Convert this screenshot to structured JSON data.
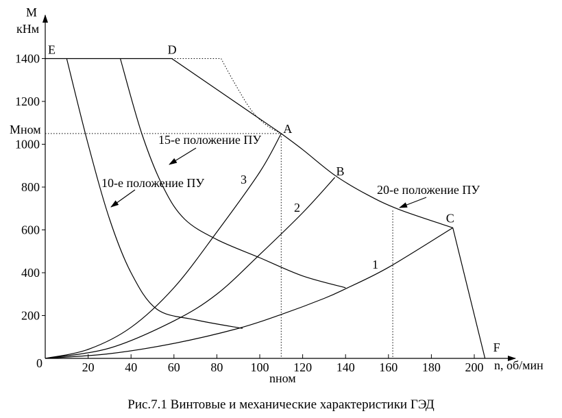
{
  "chart_data": {
    "type": "line",
    "title": "",
    "xlabel": "n, об/мин",
    "ylabel": "М\nкНм",
    "xlim": [
      0,
      220
    ],
    "ylim": [
      0,
      1550
    ],
    "x_ticks": [
      20,
      40,
      60,
      80,
      100,
      120,
      140,
      160,
      180,
      200
    ],
    "y_ticks": [
      200,
      400,
      600,
      800,
      1000,
      1200,
      1400
    ],
    "origin_label": "0",
    "grid": false,
    "series": [
      {
        "name": "1",
        "role": "propeller",
        "points": [
          [
            0,
            0
          ],
          [
            30,
            22
          ],
          [
            60,
            70
          ],
          [
            90,
            140
          ],
          [
            110,
            205
          ],
          [
            130,
            280
          ],
          [
            140,
            325
          ],
          [
            160,
            425
          ],
          [
            190,
            610
          ]
        ]
      },
      {
        "name": "2",
        "role": "propeller",
        "points": [
          [
            0,
            0
          ],
          [
            30,
            48
          ],
          [
            60,
            175
          ],
          [
            80,
            300
          ],
          [
            100,
            485
          ],
          [
            120,
            680
          ],
          [
            135,
            845
          ]
        ]
      },
      {
        "name": "3",
        "role": "propeller",
        "points": [
          [
            0,
            0
          ],
          [
            20,
            42
          ],
          [
            40,
            145
          ],
          [
            60,
            330
          ],
          [
            80,
            590
          ],
          [
            100,
            870
          ],
          [
            110,
            1050
          ]
        ]
      },
      {
        "name": "10-е положение ПУ",
        "role": "control",
        "points": [
          [
            10,
            1400
          ],
          [
            20,
            1000
          ],
          [
            30,
            650
          ],
          [
            40,
            400
          ],
          [
            52,
            230
          ],
          [
            70,
            180
          ],
          [
            92,
            140
          ]
        ]
      },
      {
        "name": "15-е положение ПУ",
        "role": "control",
        "points": [
          [
            35,
            1400
          ],
          [
            45,
            1050
          ],
          [
            55,
            800
          ],
          [
            65,
            650
          ],
          [
            80,
            555
          ],
          [
            100,
            470
          ],
          [
            120,
            385
          ],
          [
            140,
            330
          ]
        ]
      },
      {
        "name": "20-е положение ПУ",
        "role": "limit",
        "points": [
          [
            59,
            1400
          ],
          [
            110,
            1050
          ],
          [
            120,
            975
          ],
          [
            135,
            855
          ],
          [
            150,
            765
          ],
          [
            165,
            695
          ],
          [
            190,
            610
          ],
          [
            205,
            0
          ]
        ]
      },
      {
        "name": "",
        "role": "torque-limit",
        "points": [
          [
            0,
            1400
          ],
          [
            59,
            1400
          ]
        ]
      }
    ],
    "dashed": {
      "m_nom_level": 1050,
      "n_nom": 110,
      "n_line": 162,
      "dotted_branch": [
        [
          59,
          1400
        ],
        [
          82,
          1400
        ],
        [
          88,
          1290
        ],
        [
          96,
          1160
        ],
        [
          103,
          1090
        ],
        [
          110,
          1050
        ]
      ]
    },
    "points": [
      {
        "label": "E",
        "x": 0,
        "y": 1400
      },
      {
        "label": "D",
        "x": 59,
        "y": 1400
      },
      {
        "label": "A",
        "x": 110,
        "y": 1050
      },
      {
        "label": "B",
        "x": 135,
        "y": 845
      },
      {
        "label": "C",
        "x": 190,
        "y": 610
      },
      {
        "label": "F",
        "x": 205,
        "y": 0
      }
    ],
    "annotations": {
      "m_nom": "Мном",
      "n_nom": "nном",
      "curve_1": "1",
      "curve_2": "2",
      "curve_3": "3",
      "pos_10": "10-е положение ПУ",
      "pos_15": "15-е положение ПУ",
      "pos_20": "20-е положение ПУ"
    }
  },
  "caption": "Рис.7.1 Винтовые и механические характеристики ГЭД"
}
